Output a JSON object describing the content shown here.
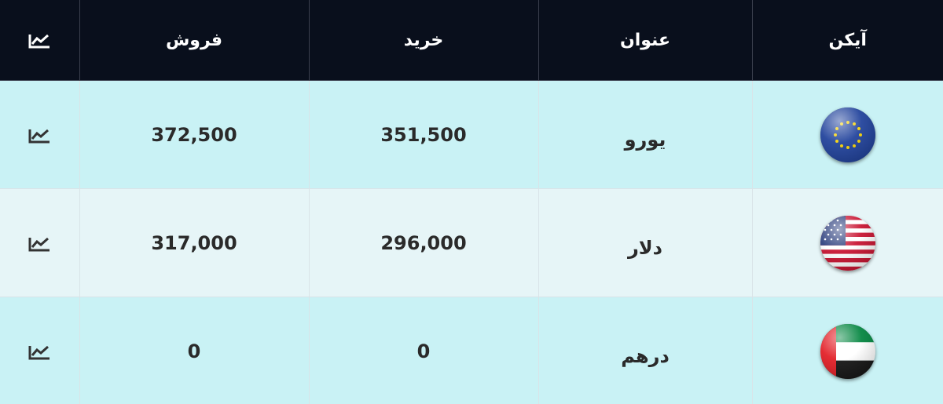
{
  "table": {
    "headers": {
      "icon": "آیکن",
      "title": "عنوان",
      "buy": "خرید",
      "sell": "فروش"
    },
    "header_chart_icon": "chart-line-icon",
    "rows": [
      {
        "flag_icon": "eu-flag-icon",
        "title": "یورو",
        "buy": "351,500",
        "sell": "372,500",
        "chart_icon": "chart-line-icon"
      },
      {
        "flag_icon": "us-flag-icon",
        "title": "دلار",
        "buy": "296,000",
        "sell": "317,000",
        "chart_icon": "chart-line-icon"
      },
      {
        "flag_icon": "uae-flag-icon",
        "title": "درهم",
        "buy": "0",
        "sell": "0",
        "chart_icon": "chart-line-icon"
      }
    ]
  },
  "colors": {
    "header_bg": "#090f1c",
    "row_odd_bg": "#c9f2f5",
    "row_even_bg": "#e6f5f7"
  }
}
